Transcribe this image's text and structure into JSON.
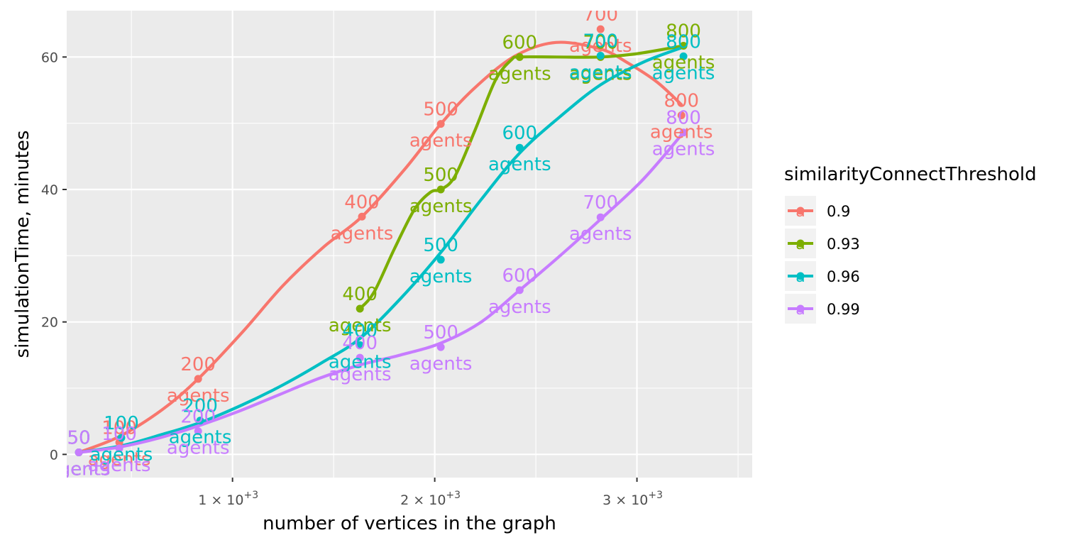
{
  "chart_data": {
    "type": "line",
    "xlabel": "number of vertices in the graph",
    "ylabel": "simulationTime, minutes",
    "xlim": [
      180,
      3570
    ],
    "ylim": [
      -3.5,
      67
    ],
    "x_ticks": [
      {
        "value": 1000,
        "label": "1 × 10^+3",
        "base": "1 × 10",
        "exp": "+3"
      },
      {
        "value": 2000,
        "label": "2 × 10^+3",
        "base": "2 × 10",
        "exp": "+3"
      },
      {
        "value": 3000,
        "label": "3 × 10^+3",
        "base": "3 × 10",
        "exp": "+3"
      }
    ],
    "y_ticks": [
      {
        "value": 0,
        "label": "0"
      },
      {
        "value": 20,
        "label": "20"
      },
      {
        "value": 40,
        "label": "40"
      },
      {
        "value": 60,
        "label": "60"
      }
    ],
    "legend": {
      "title": "similarityConnectThreshold",
      "position": "right",
      "key_glyph": "a"
    },
    "point_label_template": [
      "{n}",
      "agents"
    ],
    "series": [
      {
        "name": "0.9",
        "color": "#F8766D",
        "points": [
          {
            "x": 240,
            "y": 0.3,
            "n": 50
          },
          {
            "x": 440,
            "y": 1.8,
            "n": 100
          },
          {
            "x": 830,
            "y": 11.4,
            "n": 200
          },
          {
            "x": 1640,
            "y": 35.9,
            "n": 400
          },
          {
            "x": 2030,
            "y": 49.9,
            "n": 500
          },
          {
            "x": 2820,
            "y": 64.2,
            "n": 700
          },
          {
            "x": 3220,
            "y": 51.2,
            "n": 800
          }
        ],
        "curve": [
          [
            240,
            0.3
          ],
          [
            440,
            2.7
          ],
          [
            650,
            6.7
          ],
          [
            830,
            11.4
          ],
          [
            1050,
            18.5
          ],
          [
            1250,
            25.5
          ],
          [
            1450,
            31.3
          ],
          [
            1640,
            35.9
          ],
          [
            1850,
            43.0
          ],
          [
            2030,
            49.9
          ],
          [
            2200,
            55.4
          ],
          [
            2400,
            60.2
          ],
          [
            2600,
            62.2
          ],
          [
            2820,
            61.2
          ],
          [
            2950,
            59.2
          ],
          [
            3100,
            56.2
          ],
          [
            3220,
            52.8
          ]
        ]
      },
      {
        "name": "0.93",
        "color": "#7CAE00",
        "points": [
          {
            "x": 1630,
            "y": 22.0,
            "n": 400
          },
          {
            "x": 2030,
            "y": 40.0,
            "n": 500
          },
          {
            "x": 2420,
            "y": 60.0,
            "n": 600
          },
          {
            "x": 2820,
            "y": 60.0,
            "n": 700
          },
          {
            "x": 3230,
            "y": 61.7,
            "n": 800
          }
        ],
        "curve": [
          [
            1630,
            22.0
          ],
          [
            1700,
            24.5
          ],
          [
            1800,
            31.0
          ],
          [
            1900,
            37.0
          ],
          [
            1980,
            39.6
          ],
          [
            2030,
            40.0
          ],
          [
            2100,
            42.0
          ],
          [
            2200,
            49.0
          ],
          [
            2300,
            56.5
          ],
          [
            2380,
            59.6
          ],
          [
            2420,
            60.0
          ],
          [
            2600,
            60.0
          ],
          [
            2820,
            60.0
          ],
          [
            3000,
            60.5
          ],
          [
            3230,
            61.7
          ]
        ]
      },
      {
        "name": "0.96",
        "color": "#00BFC4",
        "points": [
          {
            "x": 240,
            "y": 0.3,
            "n": 50
          },
          {
            "x": 450,
            "y": 2.5,
            "n": 100
          },
          {
            "x": 840,
            "y": 5.1,
            "n": 200
          },
          {
            "x": 1630,
            "y": 16.5,
            "n": 400
          },
          {
            "x": 2030,
            "y": 29.4,
            "n": 500
          },
          {
            "x": 2420,
            "y": 46.3,
            "n": 600
          },
          {
            "x": 2820,
            "y": 60.2,
            "n": 700
          },
          {
            "x": 3230,
            "y": 60.1,
            "n": 800
          }
        ],
        "curve": [
          [
            240,
            0.3
          ],
          [
            450,
            1.3
          ],
          [
            650,
            3.0
          ],
          [
            840,
            4.8
          ],
          [
            1050,
            7.5
          ],
          [
            1250,
            10.5
          ],
          [
            1450,
            14.0
          ],
          [
            1630,
            17.5
          ],
          [
            1830,
            23.5
          ],
          [
            2030,
            30.5
          ],
          [
            2230,
            38.5
          ],
          [
            2420,
            45.5
          ],
          [
            2620,
            51.0
          ],
          [
            2820,
            55.8
          ],
          [
            3030,
            59.2
          ],
          [
            3230,
            61.5
          ]
        ]
      },
      {
        "name": "0.99",
        "color": "#C77CFF",
        "points": [
          {
            "x": 240,
            "y": 0.3,
            "n": 50
          },
          {
            "x": 440,
            "y": 0.9,
            "n": 100
          },
          {
            "x": 830,
            "y": 3.5,
            "n": 200
          },
          {
            "x": 1630,
            "y": 14.6,
            "n": 400
          },
          {
            "x": 2030,
            "y": 16.2,
            "n": 500
          },
          {
            "x": 2420,
            "y": 24.8,
            "n": 600
          },
          {
            "x": 2820,
            "y": 35.8,
            "n": 700
          },
          {
            "x": 3230,
            "y": 48.6,
            "n": 800
          }
        ],
        "curve": [
          [
            240,
            0.3
          ],
          [
            440,
            1.1
          ],
          [
            640,
            2.5
          ],
          [
            830,
            4.3
          ],
          [
            1030,
            6.5
          ],
          [
            1230,
            9.0
          ],
          [
            1430,
            11.5
          ],
          [
            1630,
            13.5
          ],
          [
            1830,
            15.0
          ],
          [
            2030,
            16.8
          ],
          [
            2230,
            20.0
          ],
          [
            2420,
            24.8
          ],
          [
            2620,
            30.0
          ],
          [
            2820,
            35.5
          ],
          [
            3030,
            41.5
          ],
          [
            3230,
            48.6
          ]
        ]
      }
    ]
  }
}
